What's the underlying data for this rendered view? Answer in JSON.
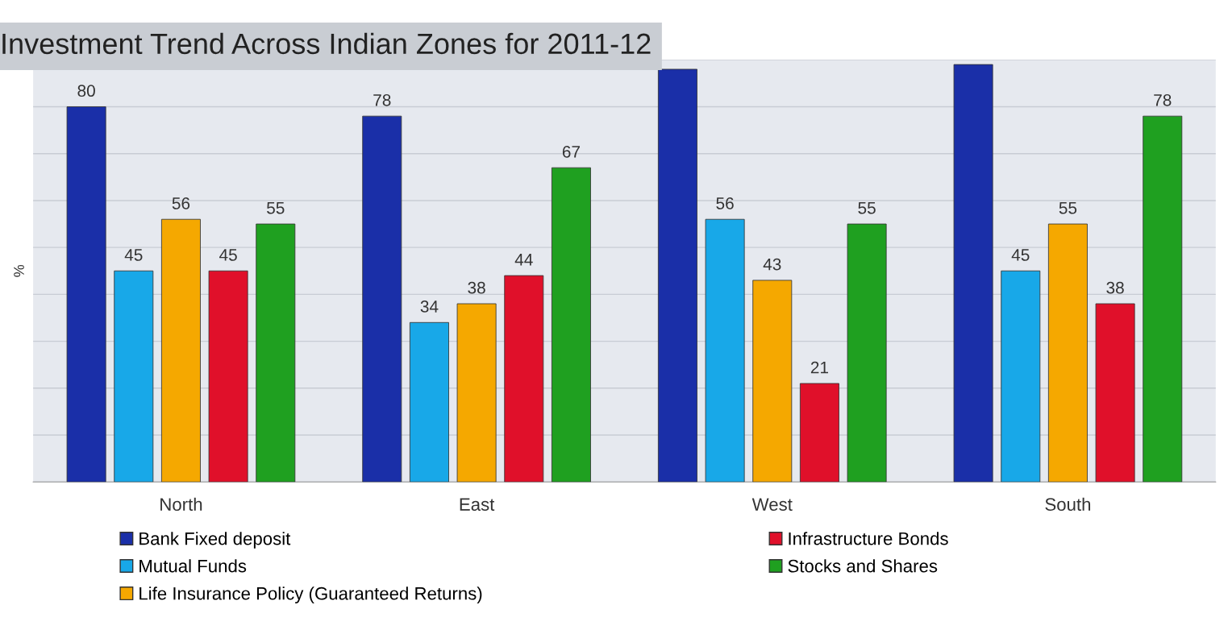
{
  "chart_data": {
    "type": "bar",
    "title": "Investment Trend Across Indian Zones for 2011-12",
    "ylabel": "%",
    "categories": [
      "North",
      "East",
      "West",
      "South"
    ],
    "series": [
      {
        "name": "Bank Fixed deposit",
        "color": "#1a2fa8",
        "values": [
          80,
          78,
          88,
          89
        ],
        "value_labels": [
          "80",
          "78",
          null,
          null
        ]
      },
      {
        "name": "Mutual Funds",
        "color": "#18a8e8",
        "values": [
          45,
          34,
          56,
          45
        ],
        "value_labels": [
          "45",
          "34",
          "56",
          "45"
        ]
      },
      {
        "name": "Life Insurance Policy (Guaranteed Returns)",
        "color": "#f5a800",
        "values": [
          56,
          38,
          43,
          55
        ],
        "value_labels": [
          "56",
          "38",
          "43",
          "55"
        ]
      },
      {
        "name": "Infrastructure Bonds",
        "color": "#e0102a",
        "values": [
          45,
          44,
          21,
          38
        ],
        "value_labels": [
          "45",
          "44",
          "21",
          "38"
        ]
      },
      {
        "name": "Stocks and Shares",
        "color": "#1fa020",
        "values": [
          55,
          67,
          55,
          78
        ],
        "value_labels": [
          "55",
          "67",
          "55",
          "78"
        ]
      }
    ],
    "ylim": [
      0,
      90
    ],
    "yticks": [
      {
        "value": 0,
        "label": null
      },
      {
        "value": 10,
        "label": null
      },
      {
        "value": 20,
        "label": null
      },
      {
        "value": 30,
        "label": null
      },
      {
        "value": 40,
        "label": null
      },
      {
        "value": 50,
        "label": null
      },
      {
        "value": 60,
        "label": null
      },
      {
        "value": 70,
        "label": null
      },
      {
        "value": 80,
        "label": null
      },
      {
        "value": 90,
        "label": null
      }
    ],
    "grid": "y",
    "legend": "bottom"
  }
}
